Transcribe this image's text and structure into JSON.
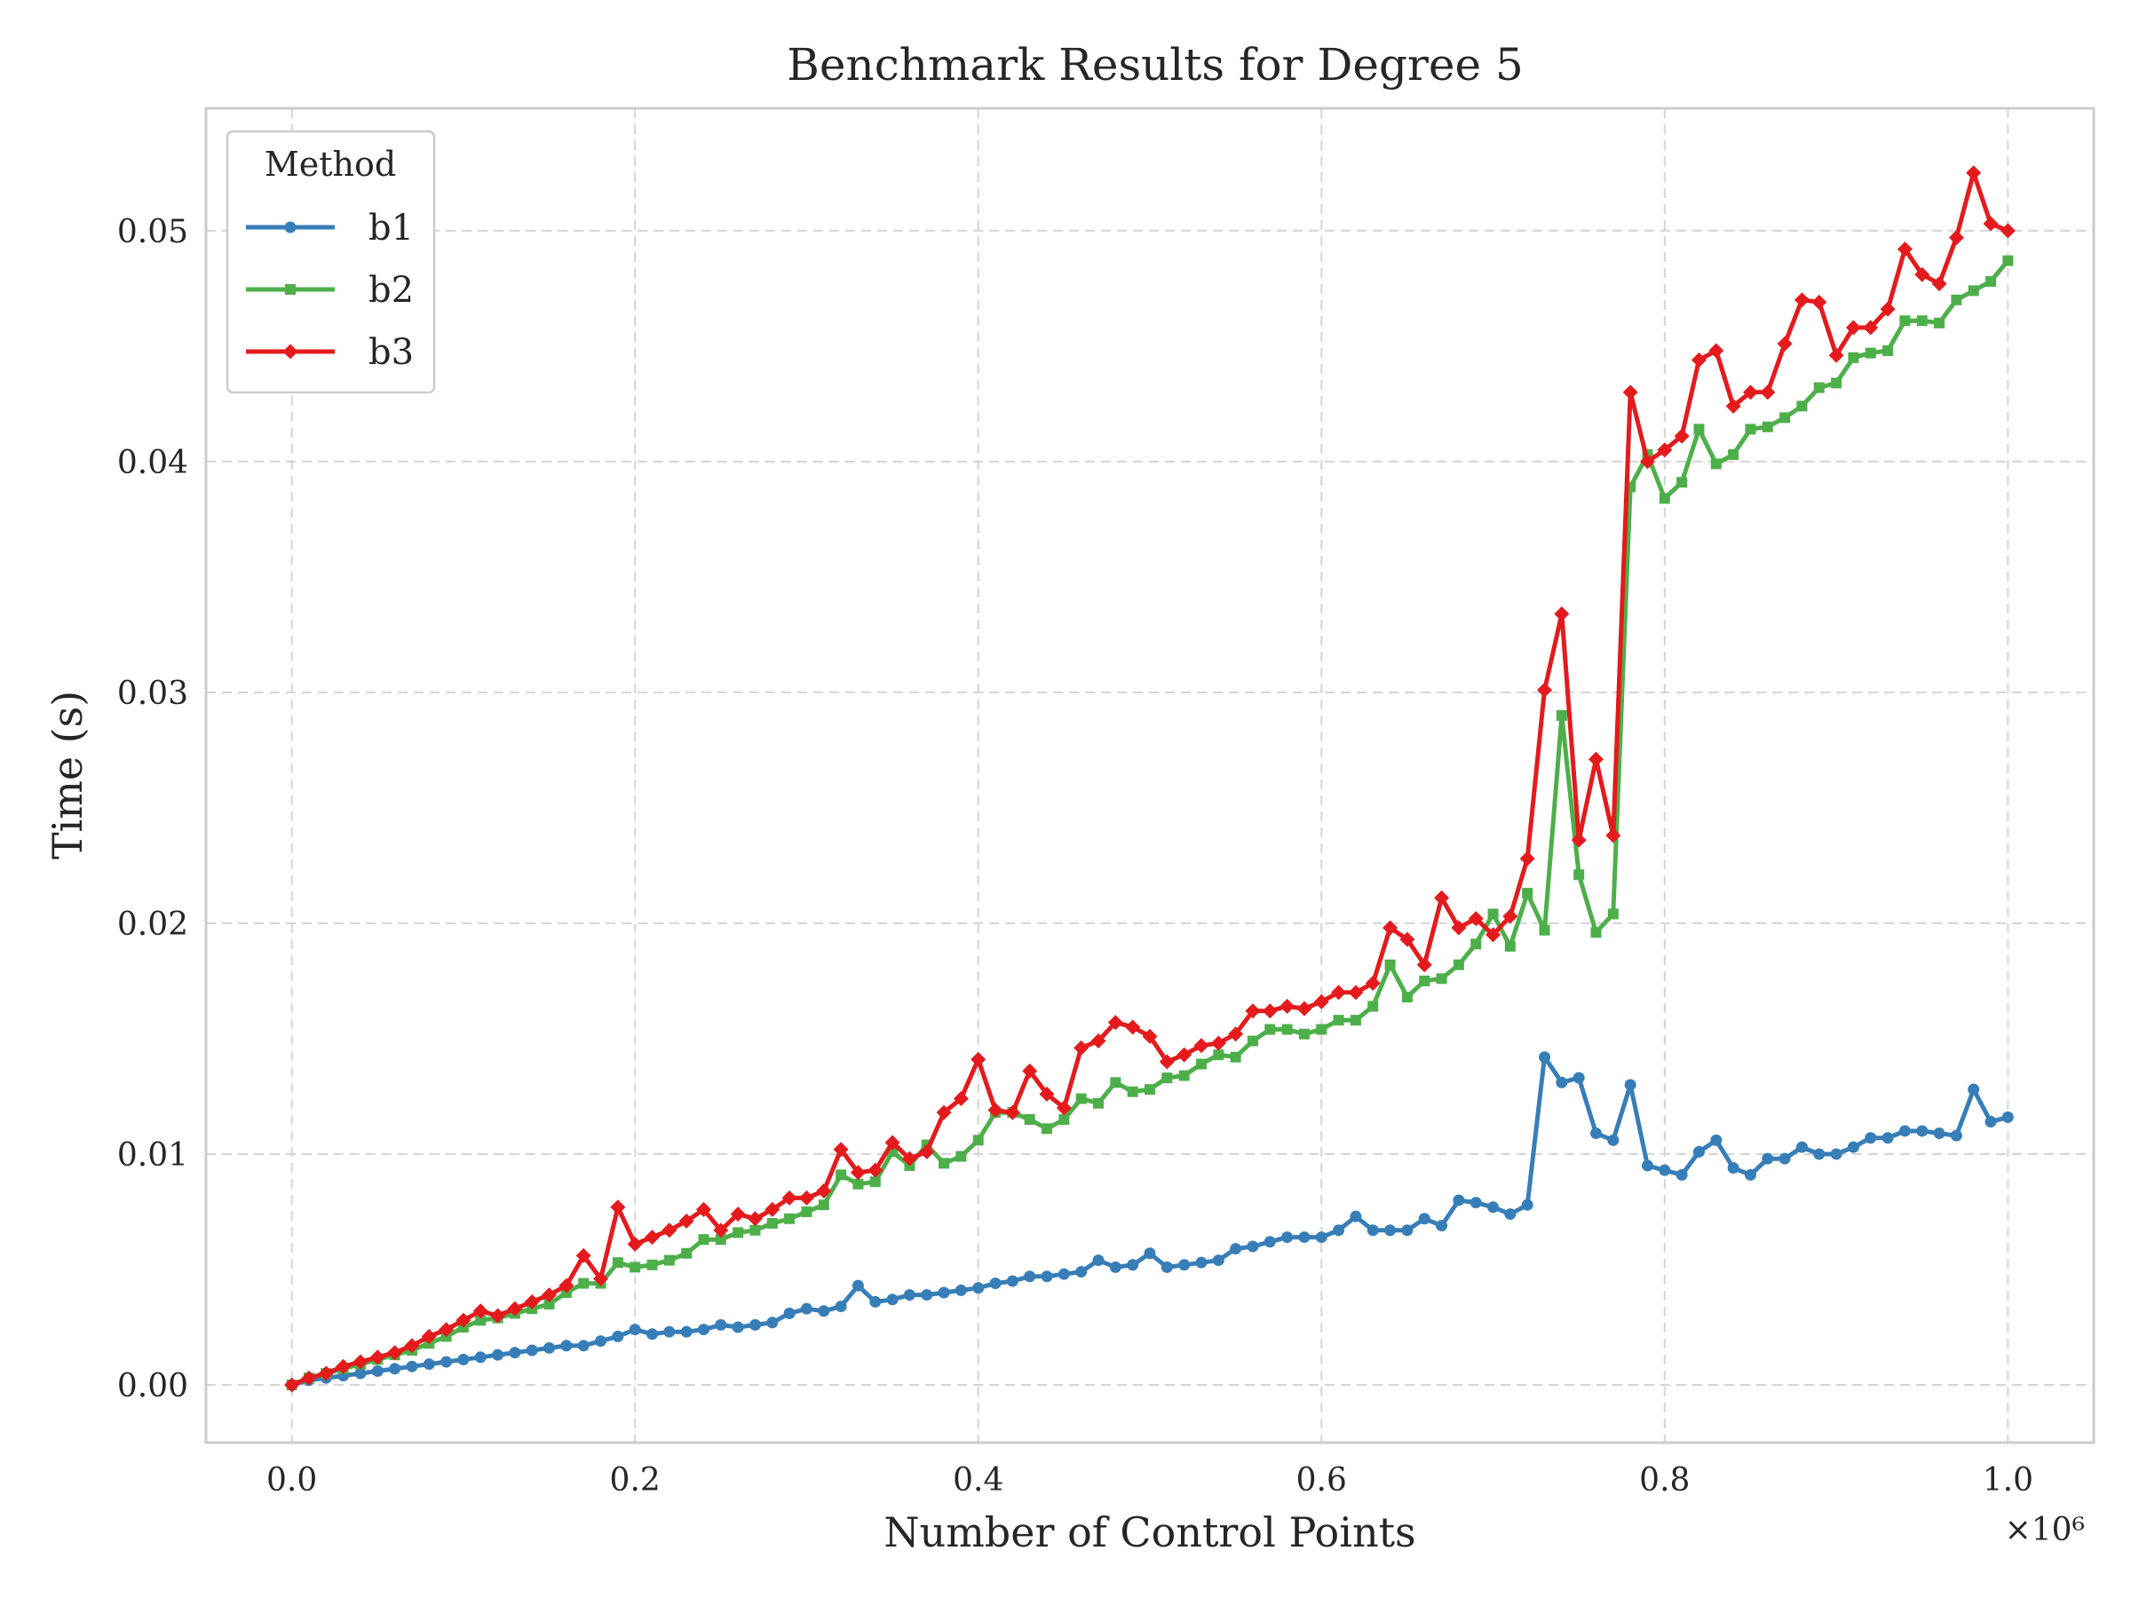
{
  "chart_data": {
    "type": "line",
    "title": "Benchmark Results for Degree 5",
    "xlabel": "Number of Control Points",
    "ylabel": "Time (s)",
    "x_offset_label": "×10⁶",
    "xlim": [
      -0.05,
      1.05
    ],
    "ylim": [
      -0.0025,
      0.0553
    ],
    "x_ticks": [
      0.0,
      0.2,
      0.4,
      0.6,
      0.8,
      1.0
    ],
    "x_tick_labels": [
      "0.0",
      "0.2",
      "0.4",
      "0.6",
      "0.8",
      "1.0"
    ],
    "y_ticks": [
      0.0,
      0.01,
      0.02,
      0.03,
      0.04,
      0.05
    ],
    "y_tick_labels": [
      "0.00",
      "0.01",
      "0.02",
      "0.03",
      "0.04",
      "0.05"
    ],
    "grid": true,
    "legend": {
      "title": "Method",
      "position": "top-left"
    },
    "x": [
      0.0,
      0.01,
      0.02,
      0.03,
      0.04,
      0.05,
      0.06,
      0.07,
      0.08,
      0.09,
      0.1,
      0.11,
      0.12,
      0.13,
      0.14,
      0.15,
      0.16,
      0.17,
      0.18,
      0.19,
      0.2,
      0.21,
      0.22,
      0.23,
      0.24,
      0.25,
      0.26,
      0.27,
      0.28,
      0.29,
      0.3,
      0.31,
      0.32,
      0.33,
      0.34,
      0.35,
      0.36,
      0.37,
      0.38,
      0.39,
      0.4,
      0.41,
      0.42,
      0.43,
      0.44,
      0.45,
      0.46,
      0.47,
      0.48,
      0.49,
      0.5,
      0.51,
      0.52,
      0.53,
      0.54,
      0.55,
      0.56,
      0.57,
      0.58,
      0.59,
      0.6,
      0.61,
      0.62,
      0.63,
      0.64,
      0.65,
      0.66,
      0.67,
      0.68,
      0.69,
      0.7,
      0.71,
      0.72,
      0.73,
      0.74,
      0.75,
      0.76,
      0.77,
      0.78,
      0.79,
      0.8,
      0.81,
      0.82,
      0.83,
      0.84,
      0.85,
      0.86,
      0.87,
      0.88,
      0.89,
      0.9,
      0.91,
      0.92,
      0.93,
      0.94,
      0.95,
      0.96,
      0.97,
      0.98,
      0.99,
      1.0
    ],
    "series": [
      {
        "name": "b1",
        "color": "#377eb8",
        "marker": "circle",
        "values": [
          0.0,
          0.0002,
          0.0003,
          0.0004,
          0.0005,
          0.0006,
          0.0007,
          0.0008,
          0.0009,
          0.001,
          0.0011,
          0.0012,
          0.0013,
          0.0014,
          0.0015,
          0.0016,
          0.0017,
          0.0017,
          0.0019,
          0.0021,
          0.0024,
          0.0022,
          0.0023,
          0.0023,
          0.0024,
          0.0026,
          0.0025,
          0.0026,
          0.0027,
          0.0031,
          0.0033,
          0.0032,
          0.0034,
          0.0043,
          0.0036,
          0.0037,
          0.0039,
          0.0039,
          0.004,
          0.0041,
          0.0042,
          0.0044,
          0.0045,
          0.0047,
          0.0047,
          0.0048,
          0.0049,
          0.0054,
          0.0051,
          0.0052,
          0.0057,
          0.0051,
          0.0052,
          0.0053,
          0.0054,
          0.0059,
          0.006,
          0.0062,
          0.0064,
          0.0064,
          0.0064,
          0.0067,
          0.0073,
          0.0067,
          0.0067,
          0.0067,
          0.0072,
          0.0069,
          0.008,
          0.0079,
          0.0077,
          0.0074,
          0.0078,
          0.0142,
          0.0131,
          0.0133,
          0.0109,
          0.0106,
          0.013,
          0.0095,
          0.0093,
          0.0091,
          0.0101,
          0.0106,
          0.0094,
          0.0091,
          0.0098,
          0.0098,
          0.0103,
          0.01,
          0.01,
          0.0103,
          0.0107,
          0.0107,
          0.011,
          0.011,
          0.0109,
          0.0108,
          0.0128,
          0.0114,
          0.0116
        ]
      },
      {
        "name": "b2",
        "color": "#4daf4a",
        "marker": "square",
        "values": [
          0.0,
          0.0003,
          0.0005,
          0.0007,
          0.0009,
          0.0011,
          0.0013,
          0.0015,
          0.0018,
          0.0021,
          0.0025,
          0.0028,
          0.0029,
          0.0031,
          0.0033,
          0.0035,
          0.004,
          0.0044,
          0.0044,
          0.0053,
          0.0051,
          0.0052,
          0.0054,
          0.0057,
          0.0063,
          0.0063,
          0.0066,
          0.0067,
          0.007,
          0.0072,
          0.0075,
          0.0078,
          0.0091,
          0.0087,
          0.0088,
          0.0101,
          0.0095,
          0.0104,
          0.0096,
          0.0099,
          0.0106,
          0.0118,
          0.0118,
          0.0115,
          0.0111,
          0.0115,
          0.0124,
          0.0122,
          0.0131,
          0.0127,
          0.0128,
          0.0133,
          0.0134,
          0.0139,
          0.0143,
          0.0142,
          0.0149,
          0.0154,
          0.0154,
          0.0152,
          0.0154,
          0.0158,
          0.0158,
          0.0164,
          0.0182,
          0.0168,
          0.0175,
          0.0176,
          0.0182,
          0.0191,
          0.0204,
          0.019,
          0.0213,
          0.0197,
          0.029,
          0.0221,
          0.0196,
          0.0204,
          0.0389,
          0.0403,
          0.0384,
          0.0391,
          0.0414,
          0.0399,
          0.0403,
          0.0414,
          0.0415,
          0.0419,
          0.0424,
          0.0432,
          0.0434,
          0.0445,
          0.0447,
          0.0448,
          0.0461,
          0.0461,
          0.046,
          0.047,
          0.0474,
          0.0478,
          0.0487
        ]
      },
      {
        "name": "b3",
        "color": "#e41a1c",
        "marker": "diamond",
        "values": [
          0.0,
          0.0003,
          0.0005,
          0.0008,
          0.001,
          0.0012,
          0.0014,
          0.0017,
          0.0021,
          0.0024,
          0.0028,
          0.0032,
          0.003,
          0.0033,
          0.0036,
          0.0039,
          0.0043,
          0.0056,
          0.0046,
          0.0077,
          0.0061,
          0.0064,
          0.0067,
          0.0071,
          0.0076,
          0.0067,
          0.0074,
          0.0072,
          0.0076,
          0.0081,
          0.0081,
          0.0084,
          0.0102,
          0.0092,
          0.0093,
          0.0105,
          0.0098,
          0.0101,
          0.0118,
          0.0124,
          0.0141,
          0.0119,
          0.0118,
          0.0136,
          0.0126,
          0.012,
          0.0146,
          0.0149,
          0.0157,
          0.0155,
          0.0151,
          0.014,
          0.0143,
          0.0147,
          0.0148,
          0.0152,
          0.0162,
          0.0162,
          0.0164,
          0.0163,
          0.0166,
          0.017,
          0.017,
          0.0174,
          0.0198,
          0.0193,
          0.0182,
          0.0211,
          0.0198,
          0.0202,
          0.0195,
          0.0203,
          0.0228,
          0.0301,
          0.0334,
          0.0236,
          0.0271,
          0.0238,
          0.043,
          0.04,
          0.0405,
          0.0411,
          0.0444,
          0.0448,
          0.0424,
          0.043,
          0.043,
          0.0451,
          0.047,
          0.0469,
          0.0446,
          0.0458,
          0.0458,
          0.0466,
          0.0492,
          0.0481,
          0.0477,
          0.0497,
          0.0525,
          0.0503,
          0.05
        ]
      }
    ]
  }
}
